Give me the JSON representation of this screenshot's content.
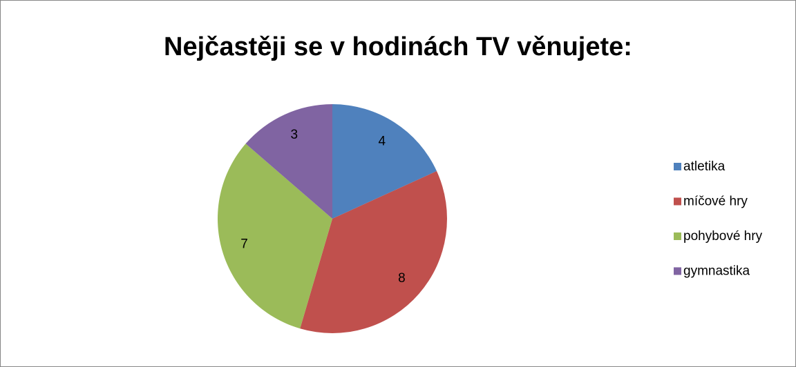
{
  "chart_data": {
    "type": "pie",
    "title": "Nejčastěji se v hodinách TV věnujete:",
    "categories": [
      "atletika",
      "míčové hry",
      "pohybové hry",
      "gymnastika"
    ],
    "values": [
      4,
      8,
      7,
      3
    ],
    "colors": [
      "#4f81bd",
      "#c0504d",
      "#9bbb59",
      "#8064a2"
    ],
    "legend": "right"
  }
}
